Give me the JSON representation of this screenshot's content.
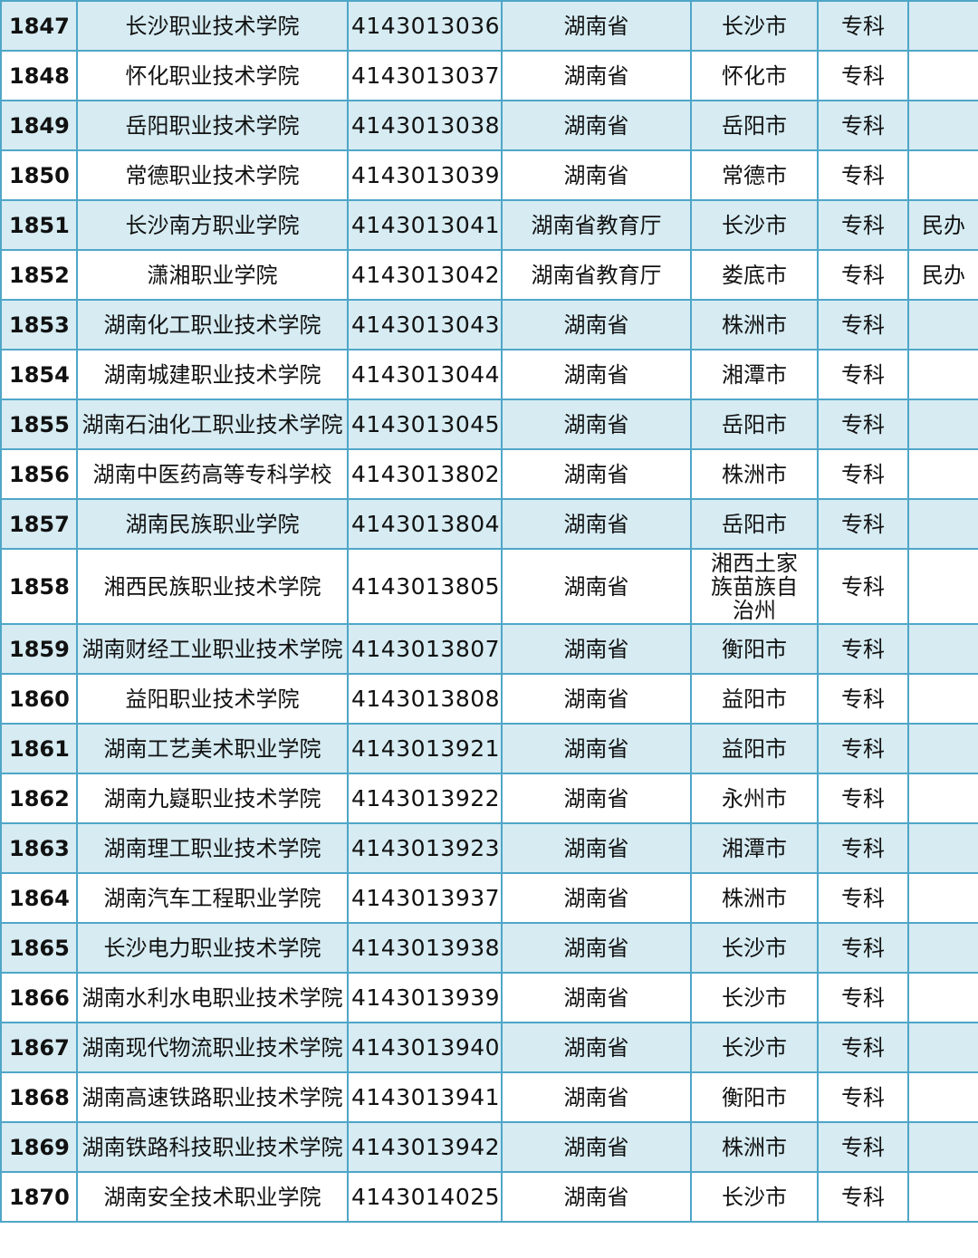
{
  "colors": {
    "border": "#4fa6c8",
    "alt_row": "#d6ebf2"
  },
  "rows": [
    [
      "1847",
      "长沙职业技术学院",
      "4143013036",
      "湖南省",
      "长沙市",
      "专科",
      ""
    ],
    [
      "1848",
      "怀化职业技术学院",
      "4143013037",
      "湖南省",
      "怀化市",
      "专科",
      ""
    ],
    [
      "1849",
      "岳阳职业技术学院",
      "4143013038",
      "湖南省",
      "岳阳市",
      "专科",
      ""
    ],
    [
      "1850",
      "常德职业技术学院",
      "4143013039",
      "湖南省",
      "常德市",
      "专科",
      ""
    ],
    [
      "1851",
      "长沙南方职业学院",
      "4143013041",
      "湖南省教育厅",
      "长沙市",
      "专科",
      "民办"
    ],
    [
      "1852",
      "潇湘职业学院",
      "4143013042",
      "湖南省教育厅",
      "娄底市",
      "专科",
      "民办"
    ],
    [
      "1853",
      "湖南化工职业技术学院",
      "4143013043",
      "湖南省",
      "株洲市",
      "专科",
      ""
    ],
    [
      "1854",
      "湖南城建职业技术学院",
      "4143013044",
      "湖南省",
      "湘潭市",
      "专科",
      ""
    ],
    [
      "1855",
      "湖南石油化工职业技术学院",
      "4143013045",
      "湖南省",
      "岳阳市",
      "专科",
      ""
    ],
    [
      "1856",
      "湖南中医药高等专科学校",
      "4143013802",
      "湖南省",
      "株洲市",
      "专科",
      ""
    ],
    [
      "1857",
      "湖南民族职业学院",
      "4143013804",
      "湖南省",
      "岳阳市",
      "专科",
      ""
    ],
    [
      "1858",
      "湘西民族职业技术学院",
      "4143013805",
      "湖南省",
      "湘西土家族苗族自治州",
      "专科",
      ""
    ],
    [
      "1859",
      "湖南财经工业职业技术学院",
      "4143013807",
      "湖南省",
      "衡阳市",
      "专科",
      ""
    ],
    [
      "1860",
      "益阳职业技术学院",
      "4143013808",
      "湖南省",
      "益阳市",
      "专科",
      ""
    ],
    [
      "1861",
      "湖南工艺美术职业学院",
      "4143013921",
      "湖南省",
      "益阳市",
      "专科",
      ""
    ],
    [
      "1862",
      "湖南九嶷职业技术学院",
      "4143013922",
      "湖南省",
      "永州市",
      "专科",
      ""
    ],
    [
      "1863",
      "湖南理工职业技术学院",
      "4143013923",
      "湖南省",
      "湘潭市",
      "专科",
      ""
    ],
    [
      "1864",
      "湖南汽车工程职业学院",
      "4143013937",
      "湖南省",
      "株洲市",
      "专科",
      ""
    ],
    [
      "1865",
      "长沙电力职业技术学院",
      "4143013938",
      "湖南省",
      "长沙市",
      "专科",
      ""
    ],
    [
      "1866",
      "湖南水利水电职业技术学院",
      "4143013939",
      "湖南省",
      "长沙市",
      "专科",
      ""
    ],
    [
      "1867",
      "湖南现代物流职业技术学院",
      "4143013940",
      "湖南省",
      "长沙市",
      "专科",
      ""
    ],
    [
      "1868",
      "湖南高速铁路职业技术学院",
      "4143013941",
      "湖南省",
      "衡阳市",
      "专科",
      ""
    ],
    [
      "1869",
      "湖南铁路科技职业技术学院",
      "4143013942",
      "湖南省",
      "株洲市",
      "专科",
      ""
    ],
    [
      "1870",
      "湖南安全技术职业学院",
      "4143014025",
      "湖南省",
      "长沙市",
      "专科",
      ""
    ]
  ]
}
